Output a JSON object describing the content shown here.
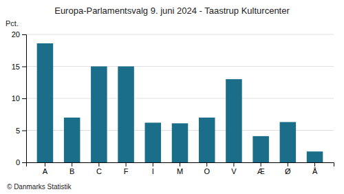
{
  "chart_data": {
    "type": "bar",
    "title": "Europa-Parlamentsvalg 9. juni 2024 - Taastrup Kulturcenter",
    "categories": [
      "A",
      "B",
      "C",
      "F",
      "I",
      "M",
      "O",
      "V",
      "Æ",
      "Ø",
      "Å"
    ],
    "values": [
      18.6,
      7.0,
      15.0,
      15.0,
      6.2,
      6.1,
      7.0,
      13.0,
      4.1,
      6.3,
      1.7
    ],
    "color": "#1a6e8a",
    "ylabel": "Pct.",
    "ylim": [
      0,
      20
    ],
    "yticks": [
      0,
      5,
      10,
      15,
      20
    ],
    "grid": true,
    "footer": "© Danmarks Statistik"
  }
}
